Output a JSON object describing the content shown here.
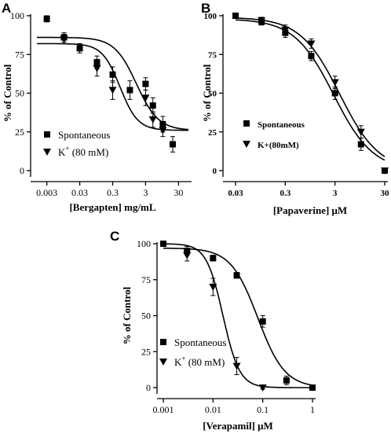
{
  "chart_data": [
    {
      "type": "scatter",
      "panel": "A",
      "xlabel": "[Bergapten] mg/mL",
      "ylabel": "% of Control",
      "xscale": "log",
      "xlim": [
        0.0015,
        60
      ],
      "ylim": [
        0,
        100
      ],
      "xticks": [
        {
          "v": 0.003,
          "label": "0.003"
        },
        {
          "v": 0.03,
          "label": "0.03"
        },
        {
          "v": 0.3,
          "label": "0.3"
        },
        {
          "v": 3,
          "label": "3"
        },
        {
          "v": 30,
          "label": "30"
        }
      ],
      "yticks": [
        0,
        25,
        50,
        75,
        100
      ],
      "legend_position": "bottom-left",
      "series": [
        {
          "name": "Spontaneous",
          "marker": "square",
          "x": [
            0.003,
            0.01,
            0.03,
            0.1,
            0.3,
            1,
            3,
            5,
            10,
            20
          ],
          "y": [
            98,
            86,
            79,
            70,
            62,
            52,
            56,
            42,
            30,
            17
          ],
          "err": [
            2,
            3,
            3,
            4,
            5,
            6,
            4,
            5,
            5,
            5
          ],
          "fit": {
            "top": 86,
            "bottom": 26,
            "logec50": 0.2,
            "hill": 1.3
          }
        },
        {
          "name": "K⁺ (80 mM)",
          "legend_text": "K",
          "legend_sup": "+",
          "legend_rest": " (80 mM)",
          "marker": "triangle",
          "x": [
            0.01,
            0.1,
            0.3,
            3,
            5,
            10
          ],
          "y": [
            85,
            66,
            52,
            47,
            33,
            26
          ],
          "err": [
            3,
            5,
            6,
            5,
            5,
            4
          ],
          "fit": {
            "top": 82,
            "bottom": 26,
            "logec50": -0.3,
            "hill": 1.6
          }
        }
      ]
    },
    {
      "type": "scatter",
      "panel": "B",
      "xlabel": "[Papaverine] μM",
      "ylabel": "% of Control",
      "xscale": "log",
      "xlim": [
        0.03,
        30
      ],
      "ylim": [
        0,
        100
      ],
      "xticks": [
        {
          "v": 0.03,
          "label": "0.03"
        },
        {
          "v": 0.3,
          "label": "0.3"
        },
        {
          "v": 3,
          "label": "3"
        },
        {
          "v": 30,
          "label": "30"
        }
      ],
      "yticks": [
        0,
        25,
        50,
        75,
        100
      ],
      "legend_position": "middle-left",
      "series": [
        {
          "name": "Spontaneous",
          "marker": "square",
          "x": [
            0.03,
            0.1,
            0.3,
            1,
            3,
            10,
            30
          ],
          "y": [
            100,
            96,
            89,
            74,
            50,
            17,
            0
          ],
          "err": [
            1,
            2,
            3,
            3,
            4,
            4,
            1
          ],
          "fit": {
            "top": 98,
            "bottom": 0,
            "logec50": 0.45,
            "hill": 1.1
          }
        },
        {
          "name": "K+(80mM)",
          "marker": "triangle",
          "x": [
            0.1,
            0.3,
            1,
            3,
            10,
            30
          ],
          "y": [
            97,
            91,
            82,
            57,
            25,
            0
          ],
          "err": [
            2,
            3,
            3,
            4,
            4,
            1
          ],
          "fit": {
            "top": 99,
            "bottom": 0,
            "logec50": 0.57,
            "hill": 1.1
          }
        }
      ]
    },
    {
      "type": "scatter",
      "panel": "C",
      "xlabel": "[Verapamil] μM",
      "ylabel": "% of Control",
      "xscale": "log",
      "xlim": [
        0.001,
        1
      ],
      "ylim": [
        0,
        100
      ],
      "xticks": [
        {
          "v": 0.001,
          "label": "0.001"
        },
        {
          "v": 0.01,
          "label": "0.01"
        },
        {
          "v": 0.1,
          "label": "0.1"
        },
        {
          "v": 1,
          "label": "1"
        }
      ],
      "yticks": [
        0,
        25,
        50,
        75,
        100
      ],
      "legend_position": "bottom-left",
      "series": [
        {
          "name": "Spontaneous",
          "marker": "square",
          "x": [
            0.001,
            0.003,
            0.01,
            0.03,
            0.1,
            0.3,
            1
          ],
          "y": [
            100,
            95,
            90,
            78,
            46,
            5,
            0
          ],
          "err": [
            1,
            3,
            2,
            2,
            4,
            3,
            1
          ],
          "fit": {
            "top": 97,
            "bottom": 0,
            "logec50": -1.1,
            "hill": 1.6
          }
        },
        {
          "name": "K⁺ (80 mM)",
          "legend_text": "K",
          "legend_sup": "+",
          "legend_rest": " (80 mM)",
          "marker": "triangle",
          "x": [
            0.003,
            0.01,
            0.03,
            0.1
          ],
          "y": [
            92,
            70,
            15,
            0
          ],
          "err": [
            4,
            6,
            6,
            1
          ],
          "fit": {
            "top": 100,
            "bottom": 0,
            "logec50": -1.8,
            "hill": 2.6
          }
        }
      ]
    }
  ]
}
